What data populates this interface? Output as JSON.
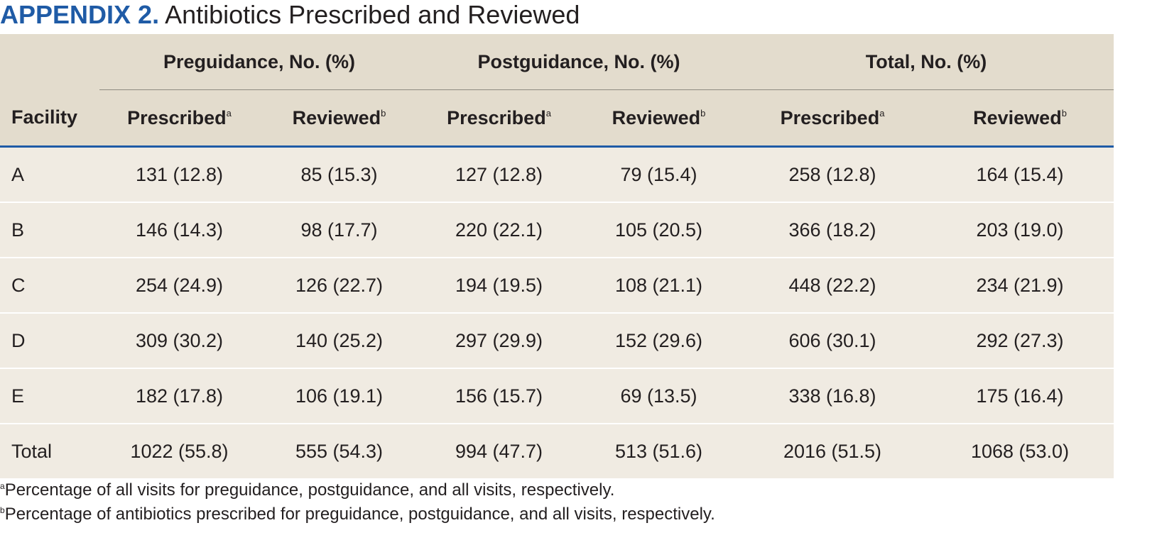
{
  "title": {
    "label": "APPENDIX 2.",
    "text": "Antibiotics Prescribed and Reviewed"
  },
  "table": {
    "facility_header": "Facility",
    "groups": [
      "Preguidance, No. (%)",
      "Postguidance, No. (%)",
      "Total, No. (%)"
    ],
    "subheaders": [
      {
        "label": "Prescribed",
        "sup": "a"
      },
      {
        "label": "Reviewed",
        "sup": "b"
      },
      {
        "label": "Prescribed",
        "sup": "a"
      },
      {
        "label": "Reviewed",
        "sup": "b"
      },
      {
        "label": "Prescribed",
        "sup": "a"
      },
      {
        "label": "Reviewed",
        "sup": "b"
      }
    ],
    "rows": [
      {
        "facility": "A",
        "values": [
          "131 (12.8)",
          "85 (15.3)",
          "127 (12.8)",
          "79 (15.4)",
          "258 (12.8)",
          "164 (15.4)"
        ]
      },
      {
        "facility": "B",
        "values": [
          "146 (14.3)",
          "98 (17.7)",
          "220 (22.1)",
          "105 (20.5)",
          "366 (18.2)",
          "203 (19.0)"
        ]
      },
      {
        "facility": "C",
        "values": [
          "254 (24.9)",
          "126 (22.7)",
          "194 (19.5)",
          "108 (21.1)",
          "448 (22.2)",
          "234 (21.9)"
        ]
      },
      {
        "facility": "D",
        "values": [
          "309 (30.2)",
          "140 (25.2)",
          "297 (29.9)",
          "152 (29.6)",
          "606 (30.1)",
          "292 (27.3)"
        ]
      },
      {
        "facility": "E",
        "values": [
          "182 (17.8)",
          "106 (19.1)",
          "156 (15.7)",
          "69 (13.5)",
          "338 (16.8)",
          "175 (16.4)"
        ]
      },
      {
        "facility": "Total",
        "values": [
          "1022 (55.8)",
          "555 (54.3)",
          "994 (47.7)",
          "513 (51.6)",
          "2016 (51.5)",
          "1068 (53.0)"
        ]
      }
    ]
  },
  "footnotes": [
    {
      "sup": "a",
      "text": "Percentage of all visits for preguidance, postguidance, and all visits, respectively."
    },
    {
      "sup": "b",
      "text": "Percentage of antibiotics prescribed for preguidance, postguidance, and all visits, respectively."
    }
  ],
  "colors": {
    "accent": "#1f5ba6",
    "header_bg": "#e3dccd",
    "body_bg": "#f0ebe2"
  }
}
